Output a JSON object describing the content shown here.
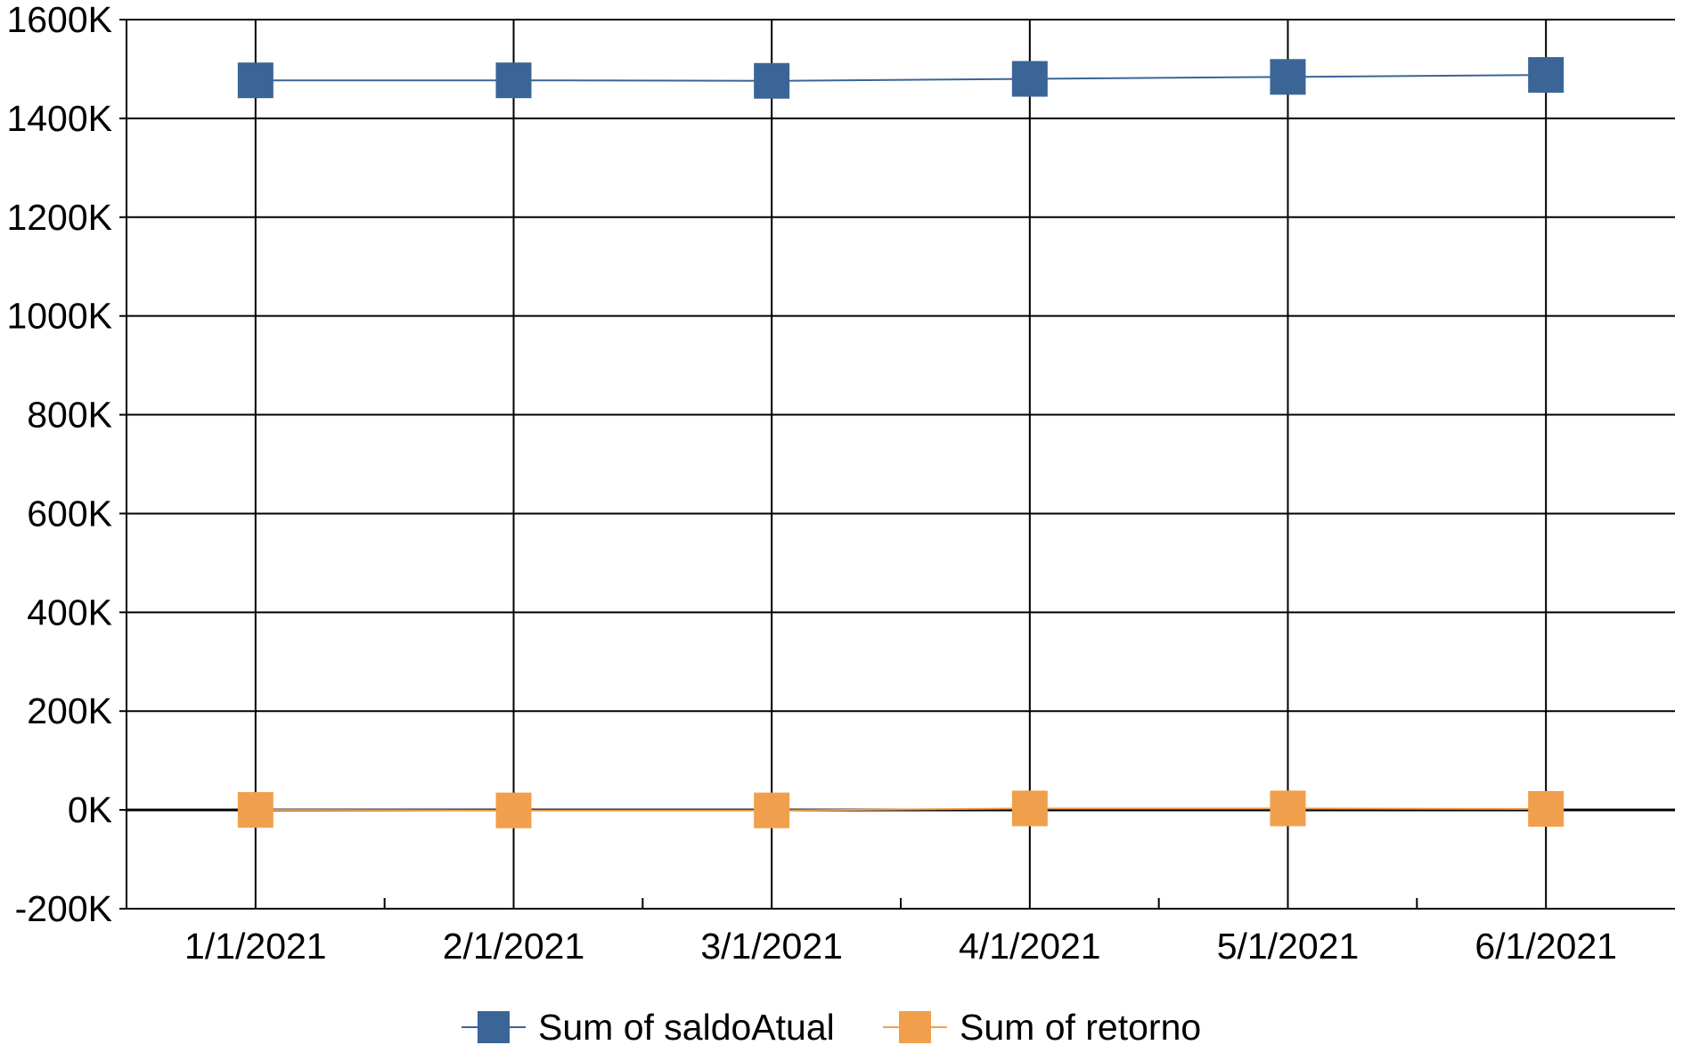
{
  "chart_data": {
    "type": "line",
    "title": "",
    "xlabel": "",
    "ylabel": "",
    "categories": [
      "1/1/2021",
      "2/1/2021",
      "3/1/2021",
      "4/1/2021",
      "5/1/2021",
      "6/1/2021"
    ],
    "ylim": [
      -200000,
      1600000
    ],
    "y_ticks": [
      -200000,
      0,
      200000,
      400000,
      600000,
      800000,
      1000000,
      1200000,
      1400000,
      1600000
    ],
    "y_tick_labels": [
      "-200K",
      "0K",
      "200K",
      "400K",
      "600K",
      "800K",
      "1000K",
      "1200K",
      "1400K",
      "1600K"
    ],
    "grid": true,
    "legend_position": "bottom",
    "marker": "square",
    "series": [
      {
        "name": "Sum of saldoAtual",
        "color": "#3a6596",
        "values": [
          1477000,
          1477000,
          1476000,
          1480000,
          1484000,
          1488000
        ]
      },
      {
        "name": "Sum of retorno",
        "color": "#f0a04c",
        "values": [
          0,
          -1000,
          -1000,
          3000,
          3000,
          2000
        ]
      }
    ]
  }
}
